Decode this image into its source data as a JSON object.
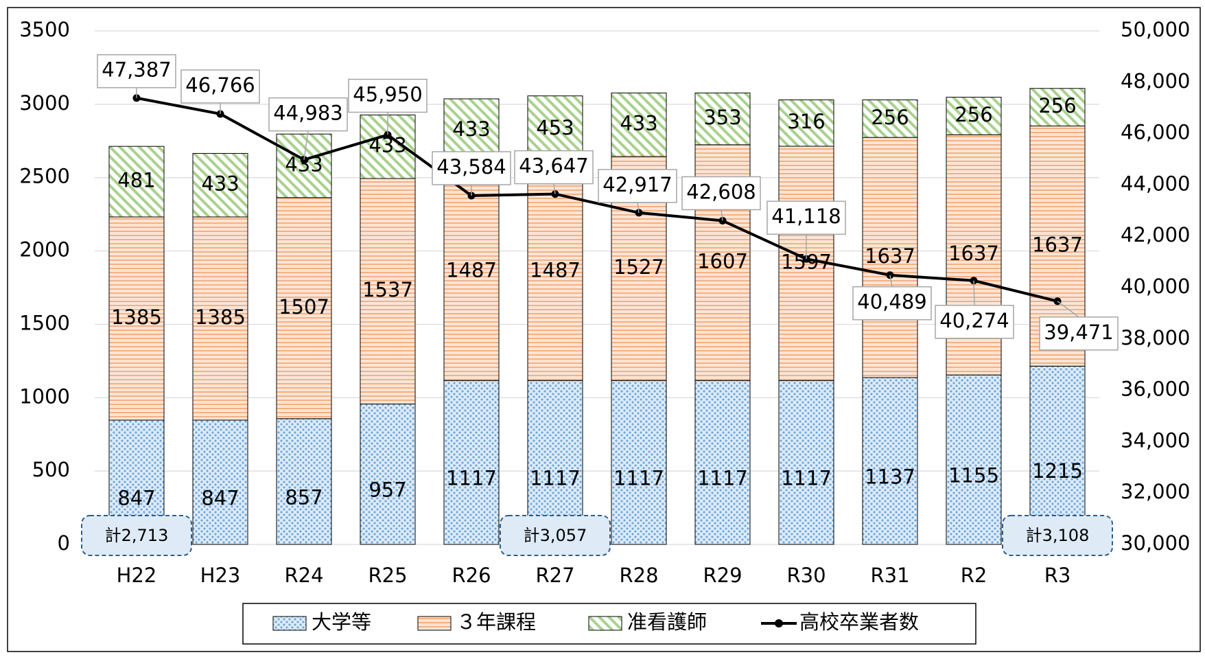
{
  "chart_data": {
    "type": "bar",
    "stacked": true,
    "categories": [
      "H22",
      "H23",
      "R24",
      "R25",
      "R26",
      "R27",
      "R28",
      "R29",
      "R30",
      "R31",
      "R2",
      "R3"
    ],
    "series": [
      {
        "name": "大学等",
        "color": "#9dc3e6",
        "values": [
          847,
          847,
          857,
          957,
          1117,
          1117,
          1117,
          1117,
          1117,
          1137,
          1155,
          1215
        ]
      },
      {
        "name": "３年課程",
        "color": "#f4b183",
        "values": [
          1385,
          1385,
          1507,
          1537,
          1487,
          1487,
          1527,
          1607,
          1597,
          1637,
          1637,
          1637
        ]
      },
      {
        "name": "准看護師",
        "color": "#a9d18e",
        "values": [
          481,
          433,
          433,
          433,
          433,
          453,
          433,
          353,
          316,
          256,
          256,
          256
        ]
      },
      {
        "name": "高校卒業者数",
        "type": "line",
        "axis": "y2",
        "color": "#000000",
        "values": [
          47387,
          46766,
          44983,
          45950,
          43584,
          43647,
          42917,
          42608,
          41118,
          40489,
          40274,
          39471
        ],
        "value_labels": [
          "47,387",
          "46,766",
          "44,983",
          "45,950",
          "43,584",
          "43,647",
          "42,917",
          "42,608",
          "41,118",
          "40,489",
          "40,274",
          "39,471"
        ]
      }
    ],
    "ylim": [
      0,
      3500
    ],
    "yticks": [
      0,
      500,
      1000,
      1500,
      2000,
      2500,
      3000,
      3500
    ],
    "y2lim": [
      30000,
      50000
    ],
    "y2ticks": [
      {
        "value": 30000,
        "label": "30,000"
      },
      {
        "value": 32000,
        "label": "32,000"
      },
      {
        "value": 34000,
        "label": "34,000"
      },
      {
        "value": 36000,
        "label": "36,000"
      },
      {
        "value": 38000,
        "label": "38,000"
      },
      {
        "value": 40000,
        "label": "40,000"
      },
      {
        "value": 42000,
        "label": "42,000"
      },
      {
        "value": 44000,
        "label": "44,000"
      },
      {
        "value": 46000,
        "label": "46,000"
      },
      {
        "value": 48000,
        "label": "48,000"
      },
      {
        "value": 50000,
        "label": "50,000"
      }
    ],
    "grid": true,
    "legend": "bottom",
    "annotations": [
      {
        "text": "計2,713",
        "x": "H22"
      },
      {
        "text": "計3,057",
        "x": "R27"
      },
      {
        "text": "計3,108",
        "x": "R3"
      }
    ]
  }
}
